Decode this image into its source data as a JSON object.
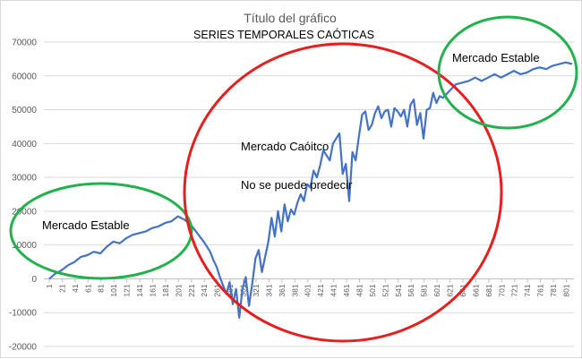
{
  "chart_data": {
    "type": "line",
    "title": "Título del gráfico",
    "subtitle": "SERIES TEMPORALES CAÓTICAS",
    "xlabel": "",
    "ylabel": "",
    "ylim": [
      -20000,
      70000
    ],
    "xlim": [
      1,
      810
    ],
    "yticks": [
      "70000",
      "60000",
      "50000",
      "40000",
      "30000",
      "20000",
      "10000",
      "0",
      "-10000",
      "-20000"
    ],
    "xticks": [
      "1",
      "21",
      "41",
      "61",
      "81",
      "101",
      "121",
      "141",
      "161",
      "181",
      "201",
      "221",
      "241",
      "261",
      "281",
      "301",
      "321",
      "341",
      "361",
      "381",
      "401",
      "421",
      "441",
      "461",
      "481",
      "501",
      "521",
      "541",
      "561",
      "581",
      "601",
      "621",
      "641",
      "661",
      "681",
      "701",
      "721",
      "741",
      "761",
      "781",
      "801"
    ],
    "grid": true,
    "legend": "none",
    "series_color": "#4472C4",
    "series": [
      {
        "x": [
          1,
          10,
          20,
          30,
          40,
          50,
          60,
          70,
          80,
          90,
          100,
          110,
          120,
          130,
          140,
          150,
          160,
          170,
          180,
          190,
          200,
          210,
          220,
          230,
          240,
          250,
          255,
          260,
          265,
          270,
          275,
          280,
          285,
          290,
          295,
          300,
          305,
          310,
          315,
          320,
          325,
          330,
          335,
          340,
          345,
          350,
          355,
          360,
          365,
          370,
          375,
          380,
          385,
          390,
          395,
          400,
          405,
          410,
          415,
          420,
          425,
          430,
          435,
          440,
          445,
          450,
          455,
          460,
          465,
          470,
          475,
          480,
          485,
          490,
          495,
          500,
          505,
          510,
          515,
          520,
          525,
          530,
          535,
          540,
          545,
          550,
          555,
          560,
          565,
          570,
          575,
          580,
          585,
          590,
          595,
          600,
          605,
          610,
          620,
          630,
          640,
          650,
          660,
          670,
          680,
          690,
          700,
          710,
          720,
          730,
          740,
          750,
          760,
          770,
          780,
          790,
          800,
          810
        ],
        "values": [
          0,
          1500,
          2500,
          4000,
          5000,
          6500,
          7000,
          8000,
          7500,
          9500,
          11000,
          10500,
          12000,
          13000,
          13500,
          14000,
          15000,
          15500,
          16500,
          17000,
          18500,
          17500,
          16000,
          13500,
          11000,
          8000,
          5500,
          3500,
          500,
          -2000,
          -4500,
          -1000,
          -7500,
          -3000,
          -11500,
          -3000,
          500,
          -8000,
          -1500,
          6000,
          8500,
          2000,
          6500,
          11000,
          18000,
          12500,
          20000,
          14000,
          22000,
          17000,
          20500,
          19000,
          22500,
          25000,
          23000,
          28000,
          27000,
          32000,
          30000,
          33500,
          38000,
          36500,
          35000,
          40000,
          41500,
          43000,
          31000,
          34000,
          23000,
          37500,
          35000,
          42000,
          48500,
          49500,
          44000,
          45500,
          49000,
          51000,
          47500,
          49500,
          50000,
          45000,
          50500,
          49500,
          48000,
          50000,
          45000,
          51500,
          53000,
          45500,
          49000,
          41500,
          50000,
          50500,
          55000,
          52000,
          54000,
          53500,
          55500,
          57500,
          58000,
          58500,
          59500,
          58500,
          59500,
          60500,
          59500,
          60500,
          61500,
          60500,
          61000,
          62000,
          62500,
          62000,
          63000,
          63500,
          64000,
          63500
        ]
      }
    ],
    "annotations": [
      {
        "text": "Mercado Estable",
        "highlight": "green"
      },
      {
        "text": "Mercado Caóitco",
        "highlight": "red"
      },
      {
        "text": "No se puede predecir",
        "highlight": "red"
      },
      {
        "text": "Mercado Estable",
        "highlight": "green"
      }
    ],
    "highlight_colors": {
      "green": "#22B14C",
      "red": "#E81E1E"
    }
  }
}
